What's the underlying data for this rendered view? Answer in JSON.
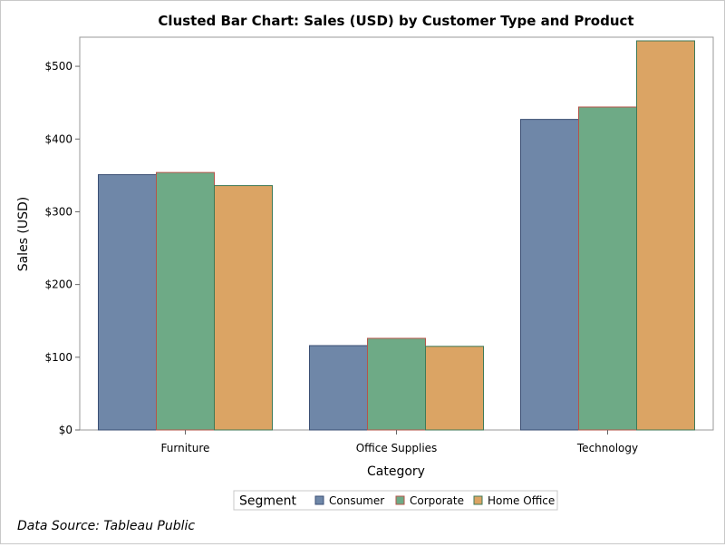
{
  "chart_data": {
    "type": "bar",
    "title": "Clusted Bar Chart: Sales (USD) by Customer Type and Product",
    "xlabel": "Category",
    "ylabel": "Sales (USD)",
    "categories": [
      "Furniture",
      "Office Supplies",
      "Technology"
    ],
    "series": [
      {
        "name": "Consumer",
        "values": [
          351,
          116,
          427
        ],
        "fill": "#6f87a8",
        "stroke": "#3b4f74"
      },
      {
        "name": "Corporate",
        "values": [
          354,
          126,
          444
        ],
        "fill": "#6eaa86",
        "stroke": "#b5554a"
      },
      {
        "name": "Home Office",
        "values": [
          336,
          115,
          535
        ],
        "fill": "#dba464",
        "stroke": "#3f7a58"
      }
    ],
    "ylim": [
      0,
      540
    ],
    "yticks": [
      0,
      100,
      200,
      300,
      400,
      500
    ],
    "ytick_labels": [
      "$0",
      "$100",
      "$200",
      "$300",
      "$400",
      "$500"
    ],
    "grid": false,
    "legend": {
      "title": "Segment",
      "placement": "bottom"
    },
    "source": "Data Source: Tableau Public"
  }
}
